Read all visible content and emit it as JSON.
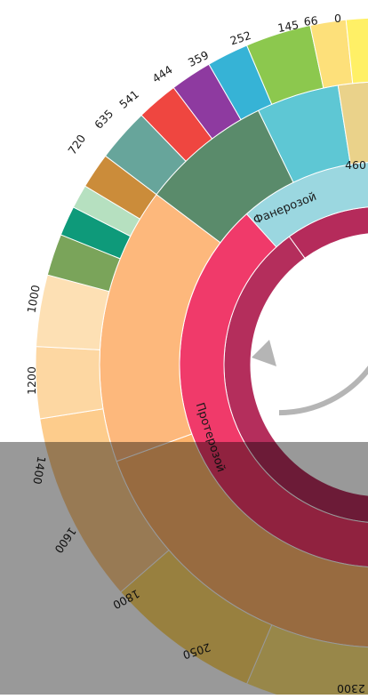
{
  "ring_labels": {
    "phanerozoic": "Фанерозой",
    "proterozoic": "Протерозой"
  },
  "tick_labels": [
    "0",
    "66",
    "145",
    "252",
    "359",
    "444",
    "541",
    "635",
    "720",
    "1000",
    "1200",
    "1400",
    "1600",
    "1800",
    "2050",
    "2300",
    "460"
  ],
  "colors": {
    "phanerozoic_eon": "#9bd7e0",
    "proterozoic_eon": "#f03a6a",
    "archean_eon": "#e0307f",
    "proterozoic_era": "#b42e5c",
    "neoproterozoic_era": "#fdb87c",
    "mesoproterozoic_era": "#fdb36b",
    "paleoproterozoic_era": "#ea5a78",
    "cenozoic_era": "#f2e07a",
    "mesozoic_era": "#5ec7d4",
    "paleozoic_era": "#5a8b6b",
    "archean_period": "#9e1f64",
    "arrow": "#b5b5b5",
    "overlay": "#000000"
  },
  "icons": [
    "clockwise-arrow-icon"
  ]
}
